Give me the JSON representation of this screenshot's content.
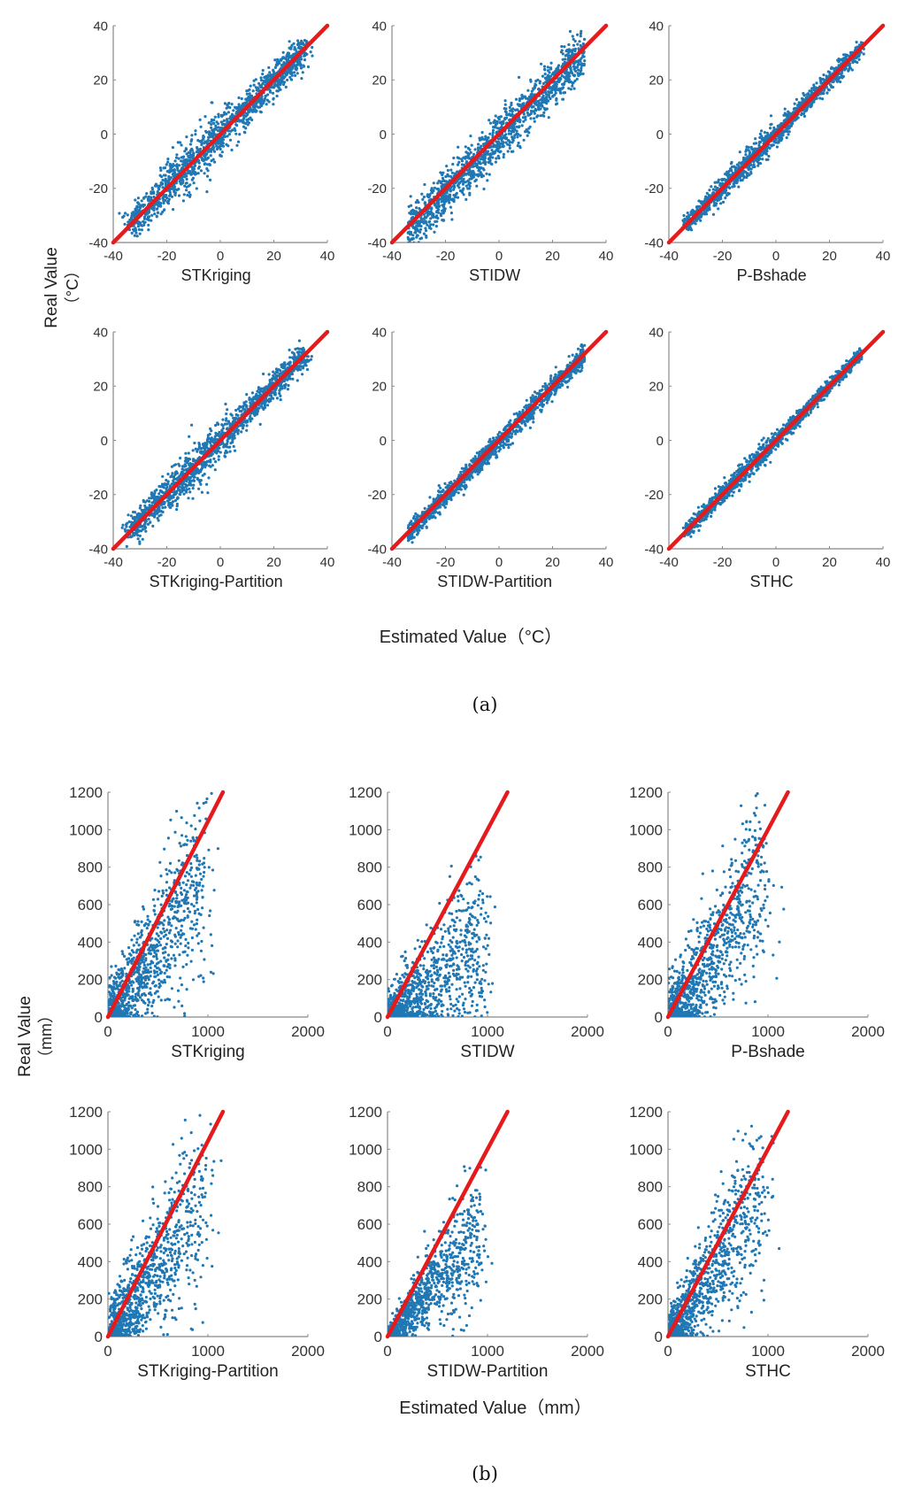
{
  "figure": {
    "panel_a_caption": "(a)",
    "panel_b_caption": "(b)",
    "panel_a_ylabel_line1": "Real Value",
    "panel_a_ylabel_line2": "（°C）",
    "panel_a_xlabel": "Estimated Value（°C）",
    "panel_b_ylabel_line1": "Real Value",
    "panel_b_ylabel_line2": "（mm）",
    "panel_b_xlabel": "Estimated Value（mm）"
  },
  "colors": {
    "points": "#1f77b4",
    "line": "#e41a1c",
    "axis": "#888888"
  },
  "chart_data": [
    {
      "panel": "a",
      "type": "scatter",
      "xlabel": "STKriging",
      "xlim": [
        -40,
        40
      ],
      "ylim": [
        -40,
        40
      ],
      "xticks": [
        -40,
        -20,
        0,
        20,
        40
      ],
      "yticks": [
        -40,
        -20,
        0,
        20,
        40
      ],
      "reference_line": {
        "from": [
          -40,
          -40
        ],
        "to": [
          40,
          40
        ]
      },
      "spread": 2.6,
      "bias": 0
    },
    {
      "panel": "a",
      "type": "scatter",
      "xlabel": "STIDW",
      "xlim": [
        -40,
        40
      ],
      "ylim": [
        -40,
        40
      ],
      "xticks": [
        -40,
        -20,
        0,
        20,
        40
      ],
      "yticks": [
        -40,
        -20,
        0,
        20,
        40
      ],
      "reference_line": {
        "from": [
          -40,
          -40
        ],
        "to": [
          40,
          40
        ]
      },
      "spread": 3.5,
      "bias": 5
    },
    {
      "panel": "a",
      "type": "scatter",
      "xlabel": "P-Bshade",
      "xlim": [
        -40,
        40
      ],
      "ylim": [
        -40,
        40
      ],
      "xticks": [
        -40,
        -20,
        0,
        20,
        40
      ],
      "yticks": [
        -40,
        -20,
        0,
        20,
        40
      ],
      "reference_line": {
        "from": [
          -40,
          -40
        ],
        "to": [
          40,
          40
        ]
      },
      "spread": 1.4,
      "bias": 0
    },
    {
      "panel": "a",
      "type": "scatter",
      "xlabel": "STKriging-Partition",
      "xlim": [
        -40,
        40
      ],
      "ylim": [
        -40,
        40
      ],
      "xticks": [
        -40,
        -20,
        0,
        20,
        40
      ],
      "yticks": [
        -40,
        -20,
        0,
        20,
        40
      ],
      "reference_line": {
        "from": [
          -40,
          -40
        ],
        "to": [
          40,
          40
        ]
      },
      "spread": 2.2,
      "bias": 0
    },
    {
      "panel": "a",
      "type": "scatter",
      "xlabel": "STIDW-Partition",
      "xlim": [
        -40,
        40
      ],
      "ylim": [
        -40,
        40
      ],
      "xticks": [
        -40,
        -20,
        0,
        20,
        40
      ],
      "yticks": [
        -40,
        -20,
        0,
        20,
        40
      ],
      "reference_line": {
        "from": [
          -40,
          -40
        ],
        "to": [
          40,
          40
        ]
      },
      "spread": 1.6,
      "bias": 2
    },
    {
      "panel": "a",
      "type": "scatter",
      "xlabel": "STHC",
      "xlim": [
        -40,
        40
      ],
      "ylim": [
        -40,
        40
      ],
      "xticks": [
        -40,
        -20,
        0,
        20,
        40
      ],
      "yticks": [
        -40,
        -20,
        0,
        20,
        40
      ],
      "reference_line": {
        "from": [
          -40,
          -40
        ],
        "to": [
          40,
          40
        ]
      },
      "spread": 1.1,
      "bias": 0
    },
    {
      "panel": "b",
      "type": "scatter",
      "xlabel": "STKriging",
      "xlim": [
        0,
        2000
      ],
      "ylim": [
        0,
        1200
      ],
      "xticks": [
        0,
        1000,
        2000
      ],
      "yticks": [
        0,
        200,
        400,
        600,
        800,
        1000,
        1200
      ],
      "reference_line": {
        "from": [
          0,
          0
        ],
        "to": [
          1150,
          1200
        ]
      },
      "slope": 0.85,
      "spread": 95
    },
    {
      "panel": "b",
      "type": "scatter",
      "xlabel": "STIDW",
      "xlim": [
        0,
        2000
      ],
      "ylim": [
        0,
        1200
      ],
      "xticks": [
        0,
        1000,
        2000
      ],
      "yticks": [
        0,
        200,
        400,
        600,
        800,
        1000,
        1200
      ],
      "reference_line": {
        "from": [
          0,
          0
        ],
        "to": [
          1200,
          1200
        ]
      },
      "slope": 0.5,
      "spread": 70
    },
    {
      "panel": "b",
      "type": "scatter",
      "xlabel": "P-Bshade",
      "xlim": [
        0,
        2000
      ],
      "ylim": [
        0,
        1200
      ],
      "xticks": [
        0,
        1000,
        2000
      ],
      "yticks": [
        0,
        200,
        400,
        600,
        800,
        1000,
        1200
      ],
      "reference_line": {
        "from": [
          0,
          0
        ],
        "to": [
          1200,
          1200
        ]
      },
      "slope": 0.85,
      "spread": 90
    },
    {
      "panel": "b",
      "type": "scatter",
      "xlabel": "STKriging-Partition",
      "xlim": [
        0,
        2000
      ],
      "ylim": [
        0,
        1200
      ],
      "xticks": [
        0,
        1000,
        2000
      ],
      "yticks": [
        0,
        200,
        400,
        600,
        800,
        1000,
        1200
      ],
      "reference_line": {
        "from": [
          0,
          0
        ],
        "to": [
          1150,
          1200
        ]
      },
      "slope": 0.85,
      "spread": 90
    },
    {
      "panel": "b",
      "type": "scatter",
      "xlabel": "STIDW-Partition",
      "xlim": [
        0,
        2000
      ],
      "ylim": [
        0,
        1200
      ],
      "xticks": [
        0,
        1000,
        2000
      ],
      "yticks": [
        0,
        200,
        400,
        600,
        800,
        1000,
        1200
      ],
      "reference_line": {
        "from": [
          0,
          0
        ],
        "to": [
          1200,
          1200
        ]
      },
      "slope": 0.65,
      "spread": 28
    },
    {
      "panel": "b",
      "type": "scatter",
      "xlabel": "STHC",
      "xlim": [
        0,
        2000
      ],
      "ylim": [
        0,
        1200
      ],
      "xticks": [
        0,
        1000,
        2000
      ],
      "yticks": [
        0,
        200,
        400,
        600,
        800,
        1000,
        1200
      ],
      "reference_line": {
        "from": [
          0,
          0
        ],
        "to": [
          1200,
          1200
        ]
      },
      "slope": 0.88,
      "spread": 75
    }
  ]
}
